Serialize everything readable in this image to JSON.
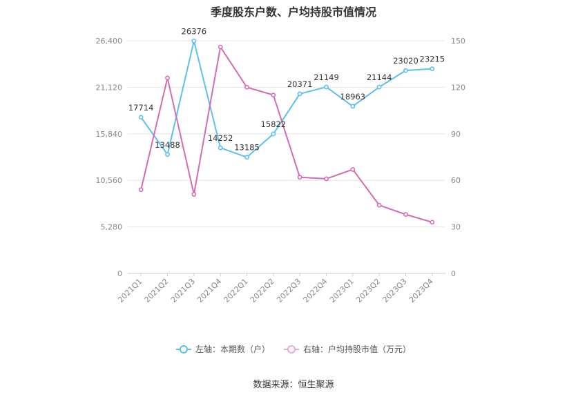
{
  "chart_data": {
    "type": "line",
    "title": "季度股东户数、户均持股市值情况",
    "categories": [
      "2021Q1",
      "2021Q2",
      "2021Q3",
      "2021Q4",
      "2022Q1",
      "2022Q2",
      "2022Q3",
      "2022Q4",
      "2023Q1",
      "2023Q2",
      "2023Q3",
      "2023Q4"
    ],
    "left_axis": {
      "ticks": [
        "0",
        "5,280",
        "10,560",
        "15,840",
        "21,120",
        "26,400"
      ],
      "min": 0,
      "max": 26400
    },
    "right_axis": {
      "ticks": [
        "0",
        "30",
        "60",
        "90",
        "120",
        "150"
      ],
      "min": 0,
      "max": 150
    },
    "series": [
      {
        "name": "左轴：本期数（户）",
        "axis": "left",
        "color": "#5bc0eb",
        "values": [
          17714,
          13488,
          26376,
          14252,
          13185,
          15822,
          20371,
          21149,
          18963,
          21144,
          23020,
          23215
        ]
      },
      {
        "name": "右轴：户均持股市值（万元）",
        "axis": "right",
        "color": "#d66bb5",
        "values": [
          54,
          126,
          51,
          146,
          120,
          115,
          62,
          61,
          67,
          44,
          38,
          33
        ]
      }
    ],
    "legend_position": "bottom",
    "grid": true
  },
  "source": "数据来源：恒生聚源"
}
